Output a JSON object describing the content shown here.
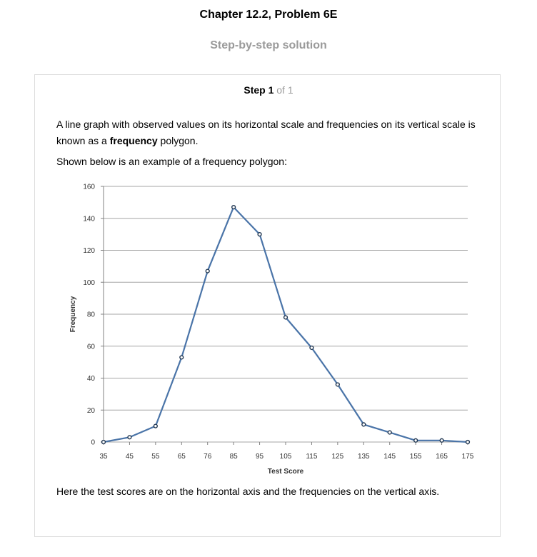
{
  "header": {
    "title": "Chapter 12.2, Problem 6E",
    "subtitle": "Step-by-step solution"
  },
  "step": {
    "label": "Step 1",
    "of": "of 1"
  },
  "content": {
    "para1_pre": "A line graph with observed values on its horizontal scale and frequencies on its vertical scale is known as a ",
    "para1_bold": "frequency",
    "para1_post": " polygon.",
    "para2": "Shown below is an example of a frequency polygon:",
    "para3": "Here the test scores are on the horizontal axis and the frequencies on the vertical axis."
  },
  "chart_data": {
    "type": "line",
    "x": [
      "35",
      "45",
      "55",
      "65",
      "76",
      "85",
      "95",
      "105",
      "115",
      "125",
      "135",
      "145",
      "155",
      "165",
      "175"
    ],
    "values": [
      0,
      3,
      10,
      53,
      107,
      147,
      130,
      78,
      59,
      36,
      11,
      6,
      1,
      1,
      0
    ],
    "xlabel": "Test Score",
    "ylabel": "Frequency",
    "ylim": [
      0,
      160
    ],
    "yticks": [
      "0",
      "20",
      "40",
      "60",
      "80",
      "100",
      "120",
      "140",
      "160"
    ],
    "grid": true,
    "line_color": "#4a74a8",
    "grid_color": "#a6a6a6"
  }
}
